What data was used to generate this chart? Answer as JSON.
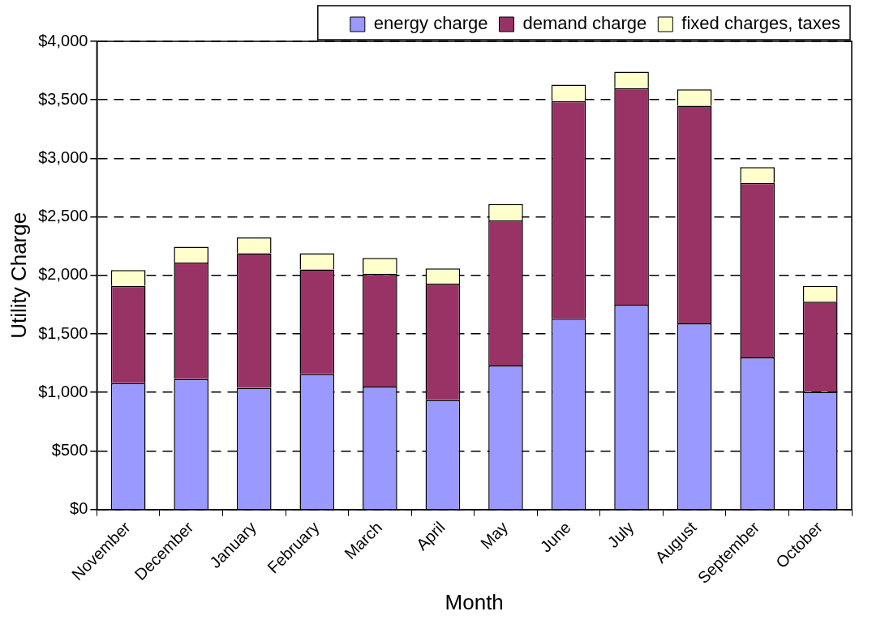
{
  "chart_data": {
    "type": "bar",
    "stacked": true,
    "xlabel": "Month",
    "ylabel": "Utility Charge",
    "categories": [
      "November",
      "December",
      "January",
      "February",
      "March",
      "April",
      "May",
      "June",
      "July",
      "August",
      "September",
      "October"
    ],
    "series": [
      {
        "name": "energy charge",
        "color": "#9999ff",
        "values": [
          1080,
          1115,
          1040,
          1155,
          1050,
          935,
          1230,
          1630,
          1750,
          1590,
          1300,
          1005
        ]
      },
      {
        "name": "demand charge",
        "color": "#993366",
        "values": [
          830,
          995,
          1150,
          895,
          965,
          995,
          1240,
          1860,
          1850,
          1860,
          1490,
          770
        ]
      },
      {
        "name": "fixed charges, taxes",
        "color": "#ffffcc",
        "values": [
          135,
          135,
          135,
          140,
          135,
          130,
          140,
          140,
          140,
          140,
          135,
          135
        ]
      }
    ],
    "ylim": [
      0,
      4000
    ],
    "yticks": [
      {
        "value": 0,
        "label": "$0"
      },
      {
        "value": 500,
        "label": "$500"
      },
      {
        "value": 1000,
        "label": "$1,000"
      },
      {
        "value": 1500,
        "label": "$1,500"
      },
      {
        "value": 2000,
        "label": "$2,000"
      },
      {
        "value": 2500,
        "label": "$2,500"
      },
      {
        "value": 3000,
        "label": "$3,000"
      },
      {
        "value": 3500,
        "label": "$3,500"
      },
      {
        "value": 4000,
        "label": "$4,000"
      }
    ],
    "grid": "y",
    "legend": "top"
  }
}
